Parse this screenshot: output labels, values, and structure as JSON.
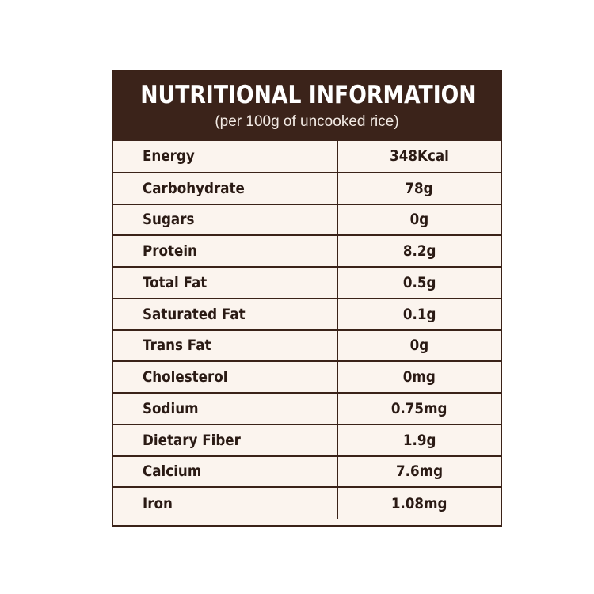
{
  "header": {
    "title": "NUTRITIONAL INFORMATION",
    "subtitle": "(per 100g of uncooked rice)"
  },
  "rows": [
    {
      "nutrient": "Energy",
      "value": "348Kcal"
    },
    {
      "nutrient": "Carbohydrate",
      "value": "78g"
    },
    {
      "nutrient": "Sugars",
      "value": "0g"
    },
    {
      "nutrient": "Protein",
      "value": "8.2g"
    },
    {
      "nutrient": "Total Fat",
      "value": "0.5g"
    },
    {
      "nutrient": "Saturated Fat",
      "value": "0.1g"
    },
    {
      "nutrient": "Trans Fat",
      "value": "0g"
    },
    {
      "nutrient": "Cholesterol",
      "value": "0mg"
    },
    {
      "nutrient": "Sodium",
      "value": "0.75mg"
    },
    {
      "nutrient": "Dietary Fiber",
      "value": "1.9g"
    },
    {
      "nutrient": "Calcium",
      "value": "7.6mg"
    },
    {
      "nutrient": "Iron",
      "value": "1.08mg"
    }
  ],
  "colors": {
    "header_bg": "#3b231a",
    "body_bg": "#fbf4ee",
    "rule": "#3a2218",
    "text": "#2a1a14"
  }
}
